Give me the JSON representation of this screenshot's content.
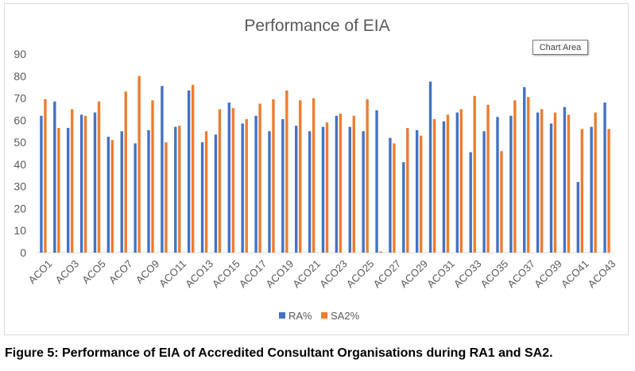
{
  "chart_data": {
    "type": "bar",
    "title": "Performance of EIA",
    "xlabel": "",
    "ylabel": "",
    "ylim": [
      0,
      90
    ],
    "yticks": [
      0,
      10,
      20,
      30,
      40,
      50,
      60,
      70,
      80,
      90
    ],
    "grid": false,
    "legend_position": "bottom",
    "categories": [
      "ACO1",
      "ACO2",
      "ACO3",
      "ACO4",
      "ACO5",
      "ACO6",
      "ACO7",
      "ACO8",
      "ACO9",
      "ACO10",
      "ACO11",
      "ACO12",
      "ACO13",
      "ACO14",
      "ACO15",
      "ACO16",
      "ACO17",
      "ACO18",
      "ACO19",
      "ACO20",
      "ACO21",
      "ACO22",
      "ACO23",
      "ACO24",
      "ACO25",
      "ACO26",
      "ACO27",
      "ACO28",
      "ACO29",
      "ACO30",
      "ACO31",
      "ACO32",
      "ACO33",
      "ACO34",
      "ACO35",
      "ACO36",
      "ACO37",
      "ACO38",
      "ACO39",
      "ACO40",
      "ACO41",
      "ACO42",
      "ACO43"
    ],
    "series": [
      {
        "name": "RA%",
        "color": "#4472C4",
        "values": [
          62,
          68.5,
          56.5,
          62.5,
          63.5,
          52.5,
          55,
          49.5,
          55.5,
          75.5,
          57,
          73.5,
          50,
          53.5,
          68,
          58.5,
          62,
          55,
          60.5,
          57.5,
          55,
          57,
          62,
          57,
          55,
          64.5,
          52,
          41,
          55.5,
          77.5,
          59.5,
          63.5,
          45.5,
          55,
          61.5,
          62,
          75,
          63.5,
          58.5,
          66,
          32,
          57,
          68
        ]
      },
      {
        "name": "SA2%",
        "color": "#ED7D31",
        "values": [
          69.5,
          56.5,
          65,
          62,
          68.5,
          51,
          73,
          80,
          69,
          50,
          57.5,
          76,
          55,
          65,
          65.5,
          60.5,
          67.5,
          69.5,
          73.5,
          69,
          70,
          59,
          63,
          62,
          69.5,
          0.5,
          49.5,
          56.5,
          53,
          60.5,
          62.5,
          65,
          71,
          67,
          46,
          69,
          70.5,
          65,
          63.5,
          62.5,
          56,
          63.5,
          56
        ]
      }
    ]
  },
  "tooltip": "Chart Area",
  "caption": "Figure 5:  Performance of EIA of Accredited Consultant Organisations during RA1 and SA2."
}
